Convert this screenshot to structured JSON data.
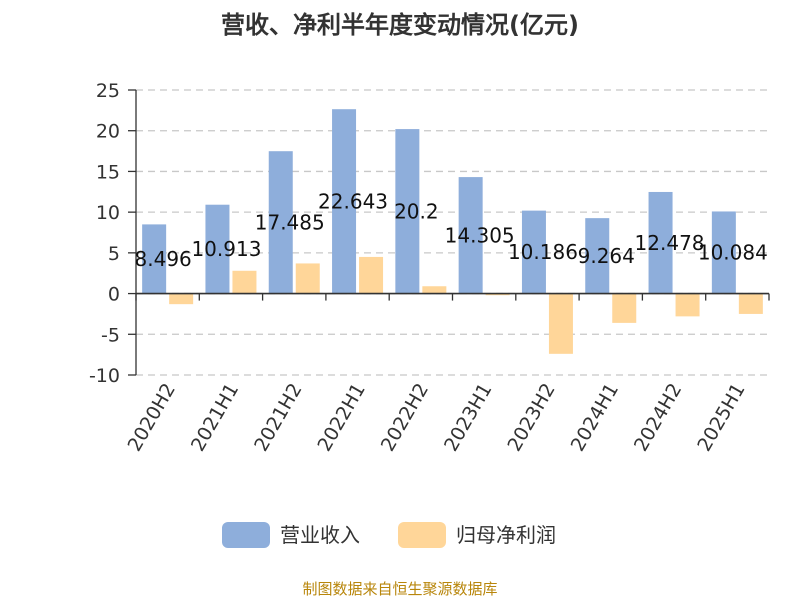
{
  "chart_data": {
    "type": "bar",
    "title": "营收、净利半年度变动情况(亿元)",
    "categories": [
      "2020H2",
      "2021H1",
      "2021H2",
      "2022H1",
      "2022H2",
      "2023H1",
      "2023H2",
      "2024H1",
      "2024H2",
      "2025H1"
    ],
    "series": [
      {
        "name": "营业收入",
        "color": "#8eaedb",
        "values": [
          8.496,
          10.913,
          17.485,
          22.643,
          20.2,
          14.305,
          10.186,
          9.264,
          12.478,
          10.084
        ],
        "labels": [
          "8.496",
          "10.913",
          "17.485",
          "22.643",
          "20.2",
          "14.305",
          "10.186",
          "9.264",
          "12.478",
          "10.084"
        ]
      },
      {
        "name": "归母净利润",
        "color": "#ffd699",
        "values": [
          -1.3,
          2.8,
          3.7,
          4.5,
          0.9,
          -0.2,
          -7.4,
          -3.6,
          -2.8,
          -2.5
        ]
      }
    ],
    "ylim": [
      -10,
      25
    ],
    "yticks": [
      "25",
      "20",
      "15",
      "10",
      "5",
      "0",
      "-5",
      "-10"
    ],
    "grid": true,
    "legend": "bottom",
    "source": "制图数据来自恒生聚源数据库"
  }
}
